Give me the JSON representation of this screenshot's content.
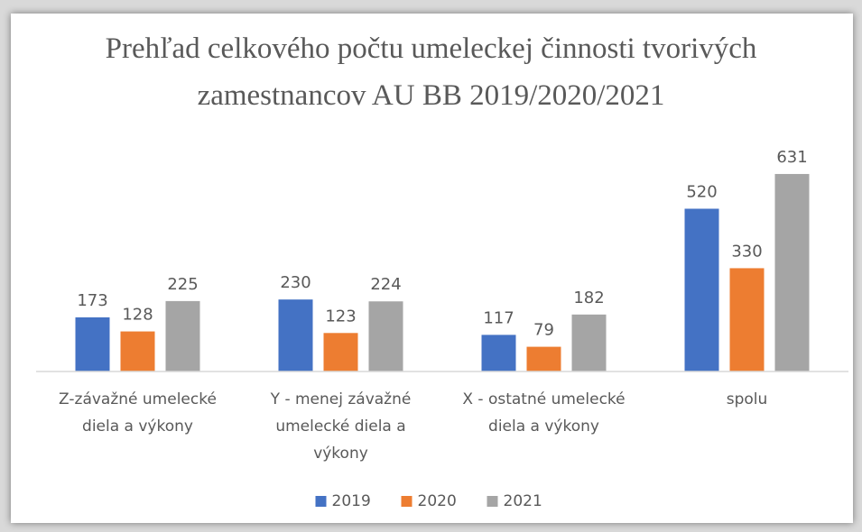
{
  "chart_data": {
    "type": "bar",
    "title": "Prehľad celkového počtu umeleckej činnosti tvorivých zamestnancov AU BB 2019/2020/2021",
    "categories": [
      "Z-závažné umelecké diela a výkony",
      "Y - menej závažné umelecké diela a výkony",
      "X - ostatné umelecké diela a výkony",
      "spolu"
    ],
    "series": [
      {
        "name": "2019",
        "color": "#4472c4",
        "values": [
          173,
          230,
          117,
          520
        ]
      },
      {
        "name": "2020",
        "color": "#ed7d31",
        "values": [
          128,
          123,
          79,
          330
        ]
      },
      {
        "name": "2021",
        "color": "#a5a5a5",
        "values": [
          225,
          224,
          182,
          631
        ]
      }
    ],
    "ylim": [
      0,
      700
    ],
    "legend": "bottom"
  }
}
